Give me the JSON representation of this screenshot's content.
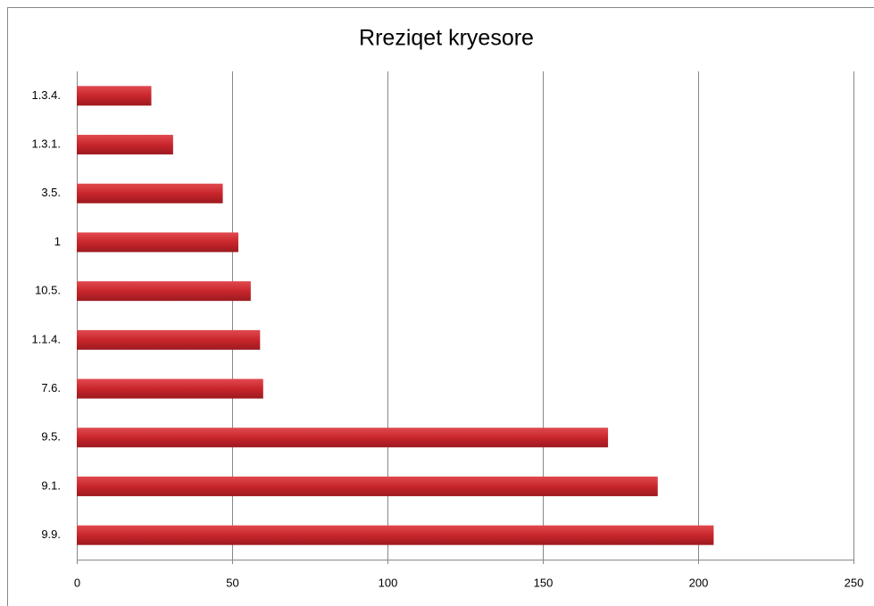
{
  "chart_data": {
    "type": "hbar",
    "title": "Rreziqet kryesore",
    "categories": [
      "1.3.4.",
      "1.3.1.",
      "3.5.",
      "1",
      "10.5.",
      "1.1.4.",
      "7.6.",
      "9.5.",
      "9.1.",
      "9.9."
    ],
    "values": [
      24,
      31,
      47,
      52,
      56,
      59,
      60,
      171,
      187,
      205
    ],
    "color": "#c0272d",
    "xlim": [
      0,
      250
    ],
    "xticks": [
      0,
      50,
      100,
      150,
      200,
      250
    ],
    "grid": true
  }
}
